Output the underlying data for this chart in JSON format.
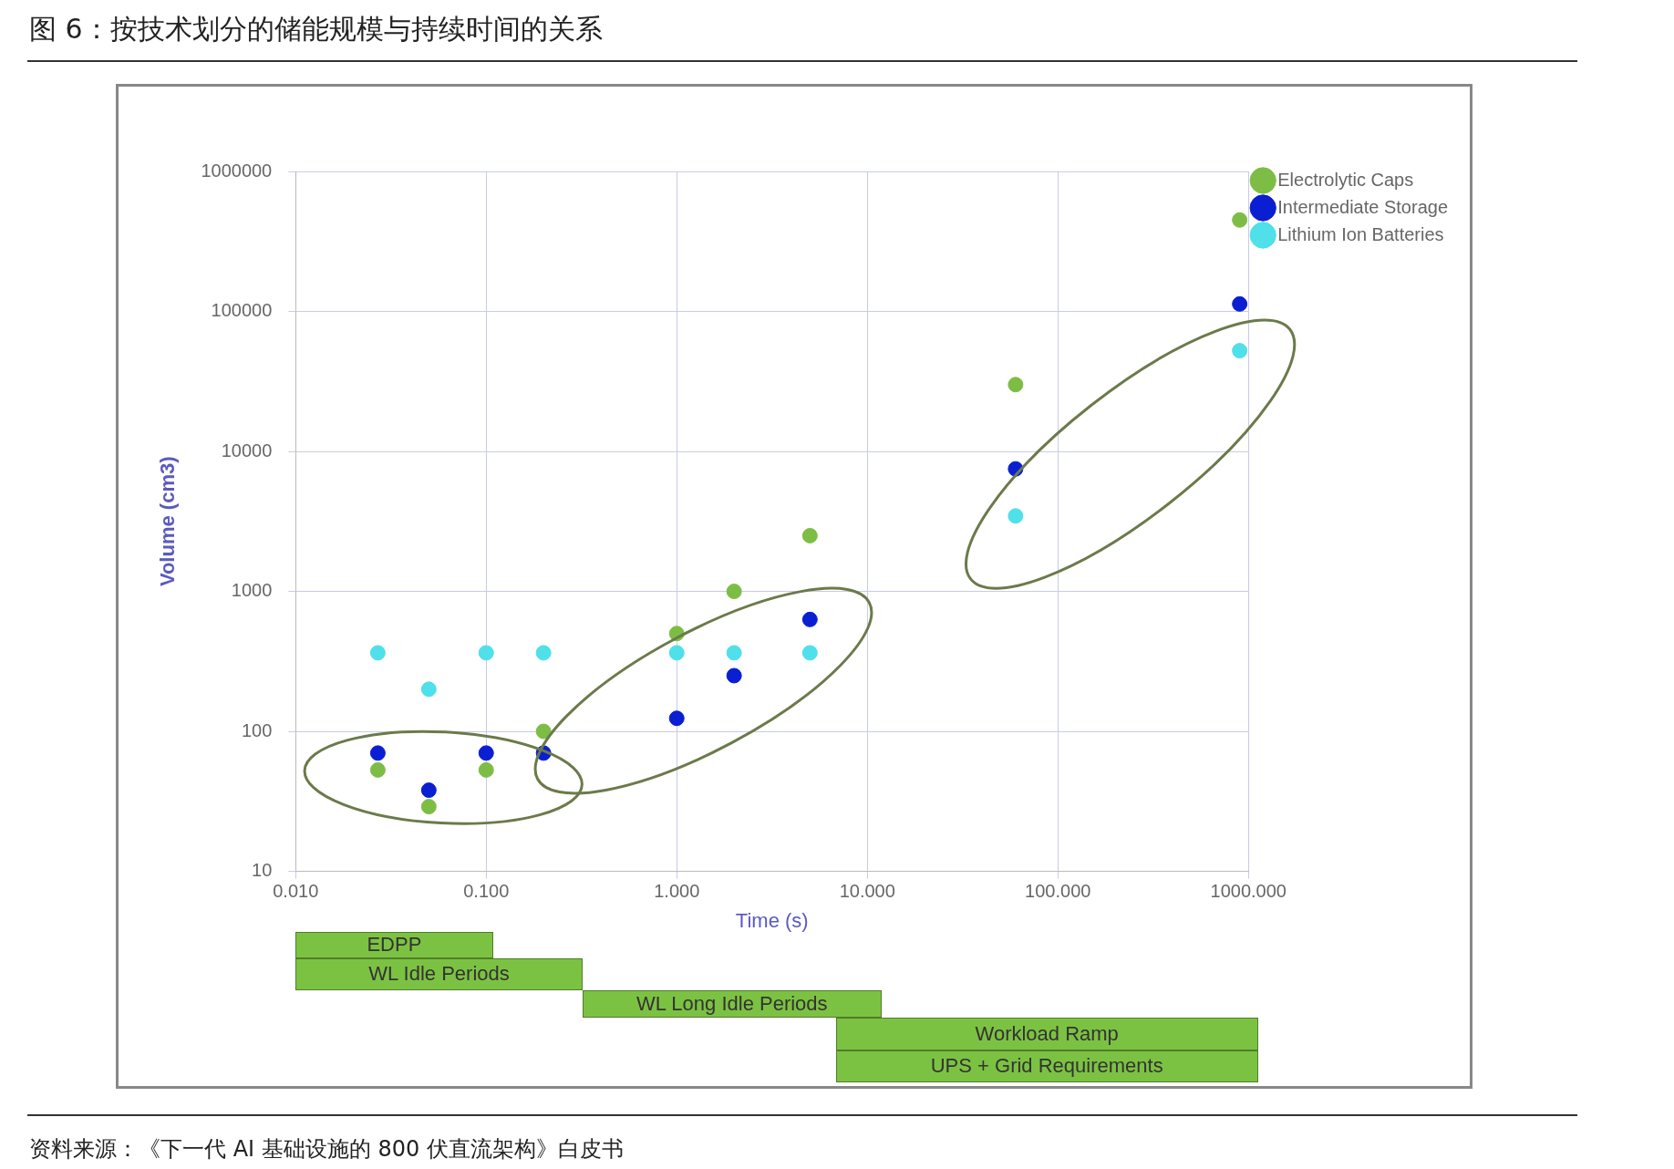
{
  "chart_data": {
    "type": "scatter",
    "title": "图 6：按技术划分的储能规模与持续时间的关系",
    "xlabel": "Time (s)",
    "ylabel": "Volume (cm3)",
    "log": "xy",
    "grid": true,
    "legend": "top right",
    "marker": "circle",
    "xlim": [
      0.01,
      1000
    ],
    "ylim": [
      10,
      1000000
    ],
    "xticks": [
      {
        "value": 0.01,
        "label": "0.010"
      },
      {
        "value": 0.1,
        "label": "0.100"
      },
      {
        "value": 1,
        "label": "1.000"
      },
      {
        "value": 10,
        "label": "10.000"
      },
      {
        "value": 100,
        "label": "100.000"
      },
      {
        "value": 1000,
        "label": "1000.000"
      }
    ],
    "yticks": [
      10,
      100,
      1000,
      10000,
      100000,
      1000000
    ],
    "x": [
      0.027,
      0.05,
      0.1,
      0.2,
      1,
      2,
      5,
      60,
      900
    ],
    "series": [
      {
        "name": "Electrolytic Caps",
        "color": "#7ebd45",
        "values": [
          53,
          29,
          53,
          100,
          500,
          1000,
          2500,
          30000,
          450000
        ]
      },
      {
        "name": "Intermediate Storage",
        "color": "#0a1ed2",
        "values": [
          70,
          38,
          70,
          70,
          124,
          250,
          630,
          7500,
          113000
        ]
      },
      {
        "name": "Lithium Ion Batteries",
        "color": "#4fe0ea",
        "values": [
          364,
          200,
          364,
          364,
          364,
          364,
          364,
          3460,
          52400
        ]
      }
    ],
    "annotations": [
      "EDPP",
      "WL Idle Periods",
      "WL Long Idle Periods",
      "Workload Ramp",
      "UPS + Grid Requirements",
      "资料来源：《下一代 AI 基础设施的 800 伏直流架构》白皮书"
    ]
  }
}
